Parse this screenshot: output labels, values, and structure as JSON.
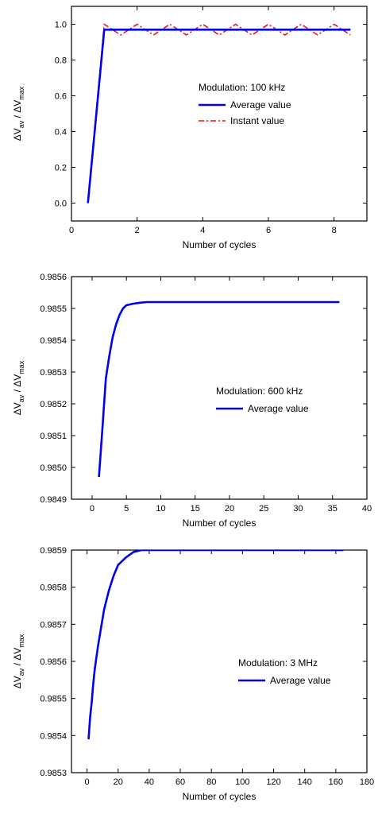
{
  "figure": {
    "description": ""
  },
  "chart_data": [
    {
      "type": "line",
      "xlabel": "Number of cycles",
      "ylabel": {
        "base": "ΔV",
        "sub1": "av",
        "mid": " / ΔV",
        "sub2": "max"
      },
      "xlim": [
        0,
        9
      ],
      "ylim": [
        -0.1,
        1.1
      ],
      "xticks": [
        0,
        2,
        4,
        6,
        8
      ],
      "xtick_labels": [
        "0",
        "2",
        "4",
        "6",
        "8"
      ],
      "yticks": [
        0.0,
        0.2,
        0.4,
        0.6,
        0.8,
        1.0
      ],
      "ytick_labels": [
        "0.0",
        "0.2",
        "0.4",
        "0.6",
        "0.8",
        "1.0"
      ],
      "legend_title": "Modulation: 100 kHz",
      "legend_position": "middle-right",
      "series": [
        {
          "name": "Average value",
          "color": "#0000ee",
          "style": "solid",
          "x": [
            0.5,
            1.0,
            8.5
          ],
          "y": [
            0.0,
            0.97,
            0.97
          ]
        },
        {
          "name": "Instant value",
          "color": "#ee1111",
          "style": "dashdot",
          "x": [
            0.5,
            1.0,
            1.5,
            2.0,
            2.5,
            3.0,
            3.5,
            4.0,
            4.5,
            5.0,
            5.5,
            6.0,
            6.5,
            7.0,
            7.5,
            8.0,
            8.5
          ],
          "y": [
            0.0,
            1.0,
            0.94,
            1.0,
            0.94,
            1.0,
            0.94,
            1.0,
            0.94,
            1.0,
            0.94,
            1.0,
            0.94,
            1.0,
            0.94,
            1.0,
            0.94
          ]
        }
      ]
    },
    {
      "type": "line",
      "xlabel": "Number of cycles",
      "ylabel": {
        "base": "ΔV",
        "sub1": "av",
        "mid": " / ΔV",
        "sub2": "max"
      },
      "xlim": [
        -3,
        40
      ],
      "ylim": [
        0.9849,
        0.9856
      ],
      "xticks": [
        0,
        5,
        10,
        15,
        20,
        25,
        30,
        35,
        40
      ],
      "xtick_labels": [
        "0",
        "5",
        "10",
        "15",
        "20",
        "25",
        "30",
        "35",
        "40"
      ],
      "yticks": [
        0.9849,
        0.985,
        0.9851,
        0.9852,
        0.9853,
        0.9854,
        0.9855,
        0.9856
      ],
      "ytick_labels": [
        "0.9849",
        "0.9850",
        "0.9851",
        "0.9852",
        "0.9853",
        "0.9854",
        "0.9855",
        "0.9856"
      ],
      "legend_title": "Modulation: 600 kHz",
      "legend_position": "middle-right",
      "series": [
        {
          "name": "Average value",
          "color": "#0000ee",
          "style": "solid",
          "x": [
            1,
            1.5,
            2,
            2.5,
            3,
            3.5,
            4,
            4.5,
            5,
            6,
            7,
            8,
            10,
            15,
            20,
            25,
            30,
            36
          ],
          "y": [
            0.98497,
            0.98512,
            0.98528,
            0.98535,
            0.98541,
            0.98545,
            0.98548,
            0.9855,
            0.98551,
            0.985515,
            0.985518,
            0.98552,
            0.98552,
            0.98552,
            0.98552,
            0.98552,
            0.98552,
            0.98552
          ]
        }
      ]
    },
    {
      "type": "line",
      "xlabel": "Number of cycles",
      "ylabel": {
        "base": "ΔV",
        "sub1": "av",
        "mid": " / ΔV",
        "sub2": "max"
      },
      "xlim": [
        -10,
        180
      ],
      "ylim": [
        0.9853,
        0.9859
      ],
      "xticks": [
        0,
        20,
        40,
        60,
        80,
        100,
        120,
        140,
        160,
        180
      ],
      "xtick_labels": [
        "0",
        "20",
        "40",
        "60",
        "80",
        "100",
        "120",
        "140",
        "160",
        "180"
      ],
      "yticks": [
        0.9853,
        0.9854,
        0.9855,
        0.9856,
        0.9857,
        0.9858,
        0.9859
      ],
      "ytick_labels": [
        "0.9853",
        "0.9854",
        "0.9855",
        "0.9856",
        "0.9857",
        "0.9858",
        "0.9859"
      ],
      "legend_title": "Modulation: 3 MHz",
      "legend_position": "middle-right",
      "series": [
        {
          "name": "Average value",
          "color": "#0000ee",
          "style": "solid",
          "x": [
            1,
            2,
            3,
            4,
            5,
            7,
            9,
            11,
            14,
            17,
            20,
            25,
            30,
            35,
            40,
            60,
            100,
            140,
            165
          ],
          "y": [
            0.98539,
            0.98545,
            0.98549,
            0.98554,
            0.98558,
            0.98564,
            0.98569,
            0.98574,
            0.98579,
            0.98583,
            0.98586,
            0.98588,
            0.985895,
            0.9859,
            0.9859,
            0.9859,
            0.9859,
            0.9859,
            0.9859
          ]
        }
      ]
    }
  ]
}
